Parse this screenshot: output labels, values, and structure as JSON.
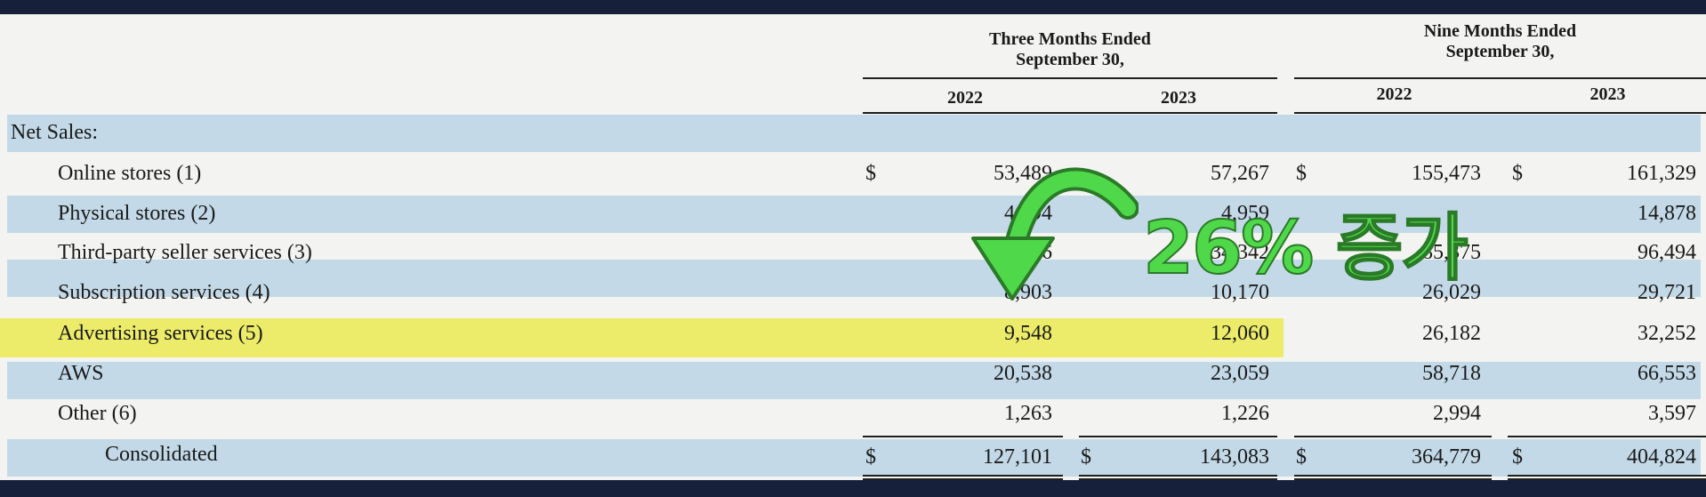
{
  "table": {
    "header": {
      "three_months": "Three Months Ended\nSeptember 30,",
      "nine_months": "Nine Months Ended\nSeptember 30,",
      "years": [
        "2022",
        "2023",
        "2022",
        "2023"
      ]
    },
    "section_label": "Net Sales:",
    "currency_symbol": "$",
    "rows": [
      {
        "label": "Online stores (1)",
        "values": [
          "53,489",
          "57,267",
          "155,473",
          "161,329"
        ]
      },
      {
        "label": "Physical stores (2)",
        "values": [
          "4,694",
          "4,959",
          "",
          "14,878"
        ]
      },
      {
        "label": "Third-party seller services (3)",
        "values": [
          "28,666",
          "34,342",
          "85,375",
          "96,494"
        ]
      },
      {
        "label": "Subscription services (4)",
        "values": [
          "8,903",
          "10,170",
          "26,029",
          "29,721"
        ]
      },
      {
        "label": "Advertising services (5)",
        "values": [
          "9,548",
          "12,060",
          "26,182",
          "32,252"
        ]
      },
      {
        "label": "AWS",
        "values": [
          "20,538",
          "23,059",
          "58,718",
          "66,553"
        ]
      },
      {
        "label": "Other (6)",
        "values": [
          "1,263",
          "1,226",
          "2,994",
          "3,597"
        ]
      }
    ],
    "total": {
      "label": "Consolidated",
      "values": [
        "127,101",
        "143,083",
        "364,779",
        "404,824"
      ]
    }
  },
  "annotation": {
    "text": "26% 증가",
    "color": "#4fd84a",
    "highlight_color": "#ecec6a"
  }
}
